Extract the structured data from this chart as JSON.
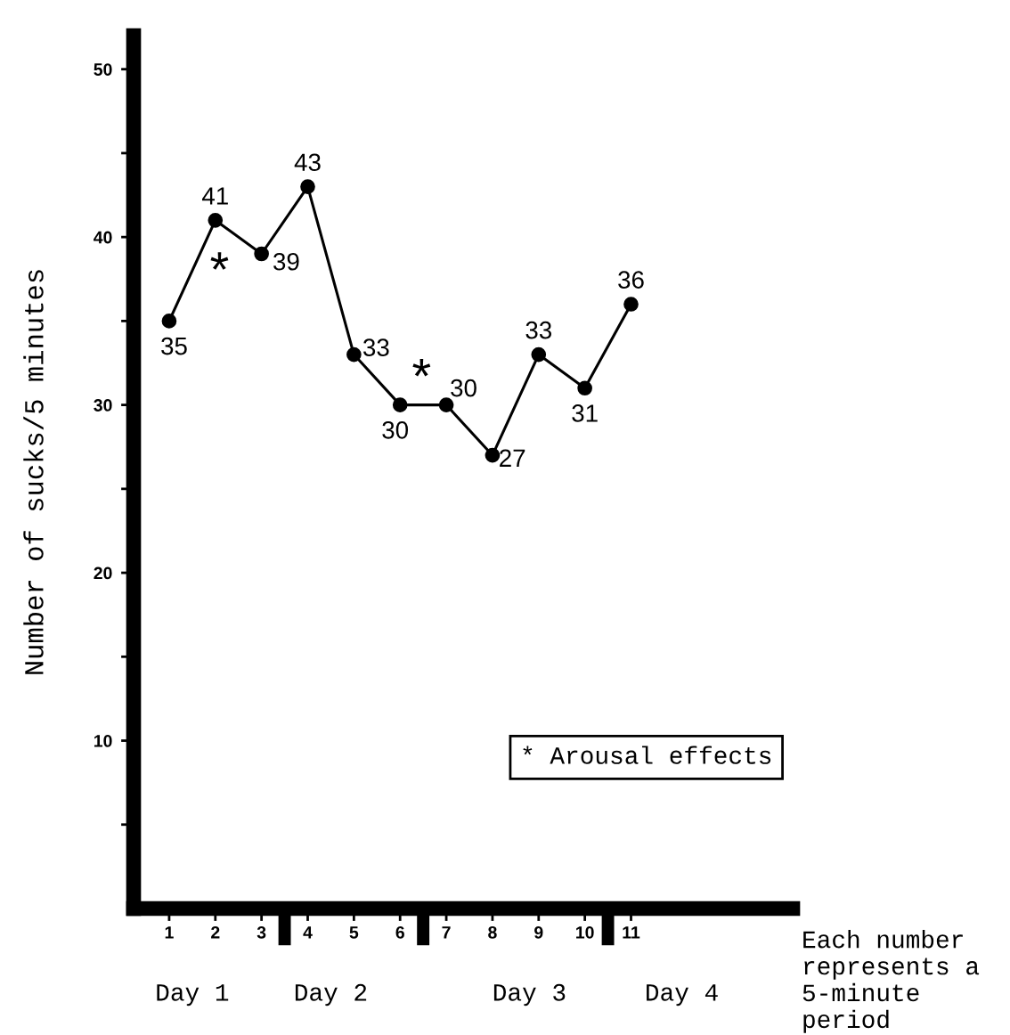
{
  "chart_data": {
    "type": "line",
    "ylabel": "Number of sucks/5 minutes",
    "categories": [
      "1",
      "2",
      "3",
      "4",
      "5",
      "6",
      "7",
      "8",
      "9",
      "10",
      "11"
    ],
    "values": [
      35,
      41,
      39,
      43,
      33,
      30,
      30,
      27,
      33,
      31,
      36
    ],
    "color": "#000000",
    "marker": "circle",
    "line_style": "solid",
    "data_labels": true,
    "grid": false,
    "ylim": [
      0,
      52
    ],
    "yticks": [
      {
        "value": 5,
        "label": null
      },
      10,
      {
        "value": 15,
        "label": null
      },
      20,
      {
        "value": 25,
        "label": null
      },
      30,
      {
        "value": 35,
        "label": null
      },
      40,
      {
        "value": 45,
        "label": null
      },
      50
    ],
    "annotations": [
      {
        "text": "*",
        "x": "3",
        "y": 39
      },
      {
        "text": "*",
        "x": "7",
        "y": 30
      },
      "* Arousal effects",
      "Day 1",
      "Day 2",
      "Day 3",
      "Day 4",
      "Each number represents a 5-minute period"
    ]
  }
}
